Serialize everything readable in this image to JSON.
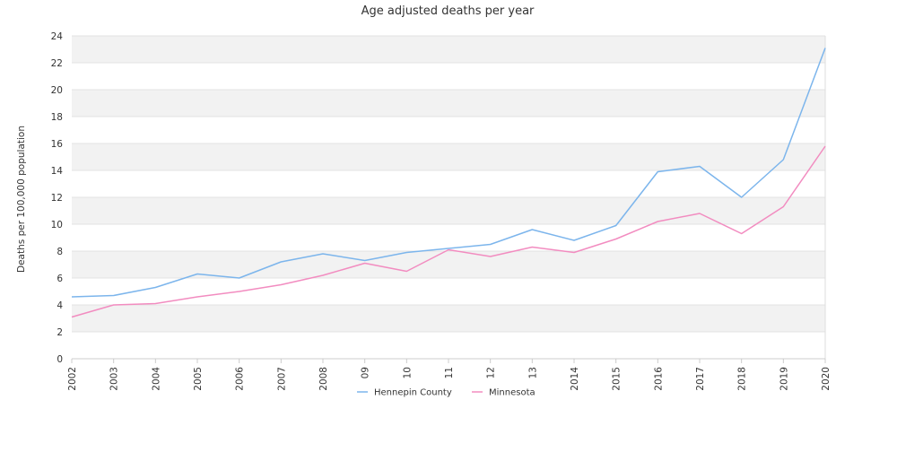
{
  "chart_data": {
    "type": "line",
    "title": "Age adjusted deaths per year",
    "xlabel": "",
    "ylabel": "Deaths per 100,000 population",
    "categories": [
      "2002",
      "2003",
      "2004",
      "2005",
      "2006",
      "2007",
      "2008",
      "09",
      "10",
      "11",
      "12",
      "13",
      "2014",
      "2015",
      "2016",
      "2017",
      "2018",
      "2019",
      "2020"
    ],
    "ylim": [
      0,
      24
    ],
    "yticks": [
      0,
      2,
      4,
      6,
      8,
      10,
      12,
      14,
      16,
      18,
      20,
      22,
      24
    ],
    "grid": "horizontal alternating bands",
    "legend_position": "bottom-center",
    "series": [
      {
        "name": "Hennepin County",
        "color": "#7cb5ec",
        "values": [
          4.6,
          4.7,
          5.3,
          6.3,
          6.0,
          7.2,
          7.8,
          7.3,
          7.9,
          8.2,
          8.5,
          9.6,
          8.8,
          9.9,
          13.9,
          14.3,
          12.0,
          14.8,
          23.1
        ]
      },
      {
        "name": "Minnesota",
        "color": "#f28cc0",
        "values": [
          3.1,
          4.0,
          4.1,
          4.6,
          5.0,
          5.5,
          6.2,
          7.1,
          6.5,
          8.1,
          7.6,
          8.3,
          7.9,
          8.9,
          10.2,
          10.8,
          9.3,
          11.3,
          15.8
        ]
      }
    ]
  }
}
